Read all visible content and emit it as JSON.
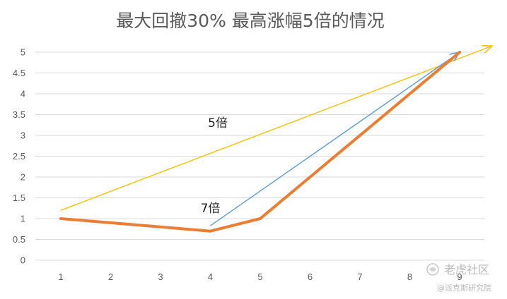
{
  "chart_data": {
    "type": "line",
    "title": "最大回撤30% 最高涨幅5倍的情况",
    "xlabel": "",
    "ylabel": "",
    "categories": [
      "1",
      "2",
      "3",
      "4",
      "5",
      "6",
      "7",
      "8",
      "9"
    ],
    "ylim": [
      0,
      5
    ],
    "yticks": [
      "0",
      "0.5",
      "1",
      "1.5",
      "2",
      "2.5",
      "3",
      "3.5",
      "4",
      "4.5",
      "5"
    ],
    "grid": true,
    "legend": "none",
    "series": [
      {
        "color": "#ED7D31",
        "points": [
          [
            1,
            1
          ],
          [
            4,
            0.7
          ],
          [
            5,
            1
          ],
          [
            9,
            5
          ]
        ]
      }
    ],
    "arrows": [
      {
        "color": "#FFC000",
        "from": [
          1,
          1.2
        ],
        "to": [
          9.65,
          5.15
        ]
      },
      {
        "color": "#5B9BD5",
        "from": [
          4,
          0.83
        ],
        "to": [
          9,
          5.0
        ]
      }
    ],
    "annotations": [
      {
        "text": "5倍",
        "x": 4.15,
        "y": 3.2
      },
      {
        "text": "7倍",
        "x": 4,
        "y": 1.15
      }
    ]
  },
  "watermark": {
    "brand": "老虎社区",
    "handle": "@派克斯研究院"
  }
}
